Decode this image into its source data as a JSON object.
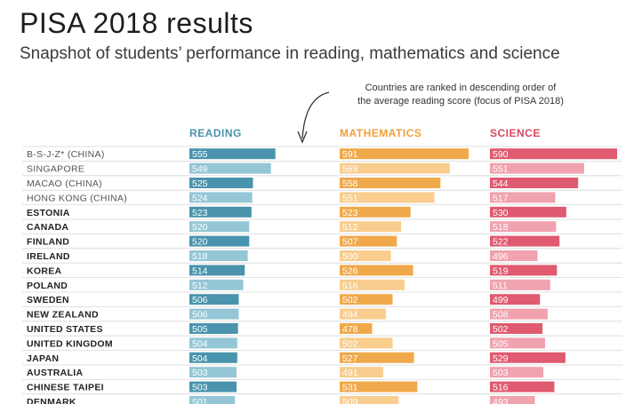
{
  "header": {
    "title": "PISA 2018 results",
    "subtitle": "Snapshot of students’ performance in reading, mathematics and science",
    "note_line1": "Countries are ranked in descending order of",
    "note_line2": "the average reading score (focus of PISA 2018)"
  },
  "colors": {
    "reading_dark": "#4a93ad",
    "reading_light": "#94c6d6",
    "math_dark": "#f0a94a",
    "math_light": "#f8cd8e",
    "science_dark": "#e05a70",
    "science_light": "#f0a2ae",
    "reading_header": "#4a93ad",
    "math_header": "#ef9f3a",
    "science_header": "#d9475e"
  },
  "chart_data": {
    "type": "bar",
    "categories": [
      "B-S-J-Z* (CHINA)",
      "SINGAPORE",
      "MACAO (CHINA)",
      "HONG KONG (CHINA)",
      "ESTONIA",
      "CANADA",
      "FINLAND",
      "IRELAND",
      "KOREA",
      "POLAND",
      "SWEDEN",
      "NEW ZEALAND",
      "UNITED STATES",
      "UNITED KINGDOM",
      "JAPAN",
      "AUSTRALIA",
      "CHINESE TAIPEI",
      "DENMARK"
    ],
    "series": [
      {
        "name": "READING",
        "values": [
          555,
          549,
          525,
          524,
          523,
          520,
          520,
          518,
          514,
          512,
          506,
          506,
          505,
          504,
          504,
          503,
          503,
          501
        ]
      },
      {
        "name": "MATHEMATICS",
        "values": [
          591,
          569,
          558,
          551,
          523,
          512,
          507,
          500,
          526,
          516,
          502,
          494,
          478,
          502,
          527,
          491,
          531,
          509
        ]
      },
      {
        "name": "SCIENCE",
        "values": [
          590,
          551,
          544,
          517,
          530,
          518,
          522,
          496,
          519,
          511,
          499,
          508,
          502,
          505,
          529,
          503,
          516,
          493
        ]
      }
    ],
    "title": "PISA 2018 results",
    "subtitle": "Snapshot of students’ performance in reading, mathematics and science",
    "xlabel": "",
    "ylabel": ""
  }
}
